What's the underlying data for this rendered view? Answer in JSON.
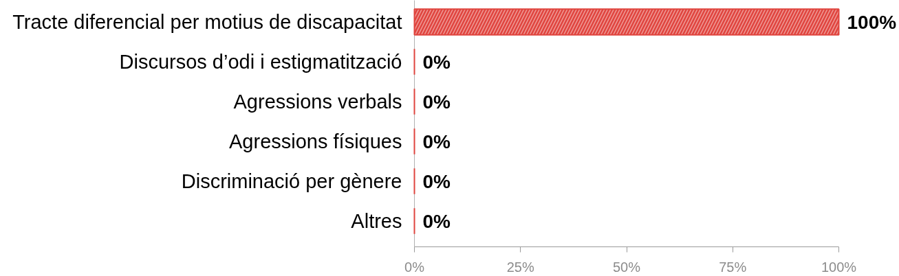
{
  "chart_data": {
    "type": "bar",
    "orientation": "horizontal",
    "categories": [
      "Tracte diferencial per motius de discapacitat",
      "Discursos d’odi i estigmatització",
      "Agressions verbals",
      "Agressions físiques",
      "Discriminació per gènere",
      "Altres"
    ],
    "values": [
      100,
      0,
      0,
      0,
      0,
      0
    ],
    "color": "#e0443e",
    "value_labels": [
      "100%",
      "0%",
      "0%",
      "0%",
      "0%",
      "0%"
    ],
    "xlim": [
      0,
      100
    ],
    "xticks": [
      {
        "value": 0,
        "label": "0%"
      },
      {
        "value": 25,
        "label": "25%"
      },
      {
        "value": 50,
        "label": "50%"
      },
      {
        "value": 75,
        "label": "75%"
      },
      {
        "value": 100,
        "label": "100%"
      }
    ]
  }
}
